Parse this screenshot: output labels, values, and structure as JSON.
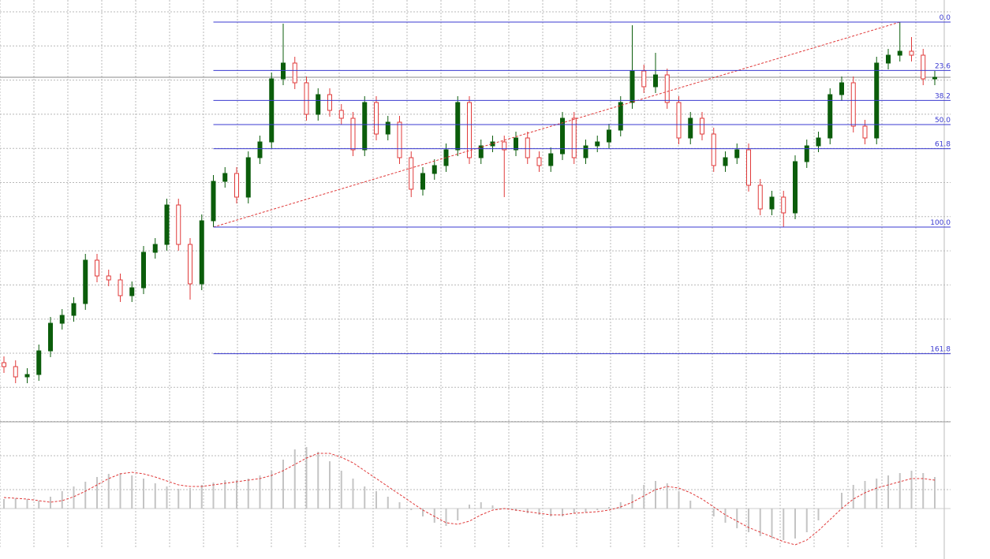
{
  "chart_data": [
    {
      "type": "candlestick",
      "open": [
        75,
        70,
        57,
        60,
        90,
        125,
        135,
        150,
        205,
        185,
        180,
        160,
        170,
        215,
        225,
        275,
        225,
        175,
        255,
        305,
        315,
        285,
        335,
        355,
        435,
        455,
        430,
        390,
        415,
        395,
        385,
        345,
        405,
        365,
        380,
        335,
        295,
        315,
        325,
        345,
        405,
        335,
        350,
        355,
        345,
        360,
        335,
        325,
        340,
        385,
        335,
        350,
        355,
        370,
        405,
        445,
        425,
        440,
        405,
        360,
        385,
        365,
        325,
        335,
        345,
        300,
        270,
        285,
        265,
        330,
        350,
        360,
        415,
        430,
        375,
        360,
        455,
        465,
        470,
        465,
        435
      ],
      "high": [
        83,
        78,
        68,
        98,
        133,
        143,
        158,
        213,
        213,
        193,
        188,
        178,
        223,
        233,
        283,
        283,
        233,
        263,
        313,
        323,
        323,
        343,
        363,
        443,
        505,
        463,
        438,
        423,
        423,
        403,
        393,
        413,
        413,
        388,
        388,
        343,
        323,
        333,
        353,
        413,
        413,
        358,
        363,
        363,
        368,
        368,
        343,
        348,
        393,
        393,
        358,
        363,
        378,
        413,
        503,
        453,
        468,
        448,
        413,
        393,
        393,
        373,
        343,
        353,
        353,
        308,
        293,
        293,
        338,
        358,
        368,
        423,
        438,
        438,
        383,
        463,
        473,
        507,
        488,
        473,
        445
      ],
      "low": [
        62,
        49,
        49,
        52,
        82,
        117,
        127,
        142,
        177,
        172,
        152,
        152,
        162,
        207,
        217,
        217,
        155,
        167,
        247,
        297,
        277,
        277,
        327,
        347,
        427,
        422,
        382,
        382,
        387,
        377,
        337,
        337,
        357,
        357,
        327,
        285,
        287,
        307,
        317,
        337,
        327,
        327,
        342,
        285,
        337,
        327,
        317,
        317,
        332,
        327,
        327,
        342,
        347,
        362,
        397,
        417,
        417,
        397,
        352,
        352,
        357,
        317,
        317,
        327,
        292,
        262,
        262,
        247,
        257,
        322,
        342,
        352,
        407,
        367,
        352,
        352,
        447,
        457,
        457,
        427,
        427
      ],
      "close": [
        70,
        57,
        60,
        90,
        125,
        135,
        150,
        205,
        185,
        180,
        160,
        170,
        215,
        225,
        275,
        225,
        175,
        255,
        305,
        315,
        285,
        335,
        355,
        435,
        455,
        430,
        390,
        415,
        395,
        385,
        345,
        405,
        365,
        380,
        335,
        295,
        315,
        325,
        345,
        405,
        335,
        350,
        355,
        345,
        360,
        335,
        325,
        340,
        385,
        335,
        350,
        355,
        370,
        405,
        445,
        425,
        440,
        405,
        360,
        385,
        365,
        325,
        335,
        345,
        300,
        270,
        285,
        265,
        330,
        350,
        360,
        415,
        430,
        375,
        360,
        455,
        465,
        470,
        465,
        435,
        437
      ],
      "ylim": [
        0,
        535
      ],
      "up_color": "#0b5d0b",
      "down_color": "#e03a3a",
      "fibonacci": {
        "high": 507,
        "low": 247,
        "color": "#3a3ad0",
        "levels": [
          {
            "value": 0,
            "label": "0.0"
          },
          23.6,
          38.2,
          {
            "value": 50,
            "label": "50.0"
          },
          61.8,
          {
            "value": 100,
            "label": "100.0"
          },
          161.8
        ]
      }
    },
    {
      "type": "macd",
      "histogram": [
        12,
        13,
        12,
        10,
        15,
        22,
        28,
        34,
        40,
        44,
        45,
        42,
        38,
        32,
        28,
        25,
        26,
        30,
        33,
        36,
        36,
        38,
        42,
        48,
        62,
        75,
        78,
        72,
        60,
        48,
        38,
        28,
        22,
        15,
        8,
        -2,
        -10,
        -18,
        -22,
        -15,
        5,
        8,
        4,
        0,
        -3,
        -6,
        -8,
        -10,
        -10,
        -6,
        -5,
        -2,
        2,
        8,
        18,
        30,
        35,
        32,
        22,
        10,
        0,
        -10,
        -18,
        -25,
        -30,
        -35,
        -38,
        -40,
        -38,
        -30,
        -15,
        0,
        20,
        30,
        35,
        38,
        42,
        45,
        48,
        45,
        40
      ],
      "signal": [
        14,
        13,
        12,
        10,
        8,
        10,
        15,
        22,
        30,
        38,
        44,
        46,
        44,
        40,
        35,
        30,
        28,
        28,
        30,
        32,
        34,
        36,
        38,
        42,
        48,
        56,
        64,
        70,
        70,
        65,
        58,
        48,
        38,
        28,
        18,
        8,
        -2,
        -10,
        -18,
        -20,
        -16,
        -8,
        -2,
        0,
        -2,
        -4,
        -6,
        -8,
        -8,
        -6,
        -5,
        -4,
        -2,
        2,
        8,
        16,
        24,
        28,
        26,
        20,
        12,
        2,
        -8,
        -16,
        -24,
        -30,
        -36,
        -42,
        -46,
        -40,
        -28,
        -14,
        0,
        12,
        20,
        26,
        30,
        34,
        38,
        38,
        36
      ],
      "ylim": [
        -50,
        90
      ],
      "histogram_color": "#c4c4c4",
      "signal_color": "#e03a3a"
    }
  ]
}
